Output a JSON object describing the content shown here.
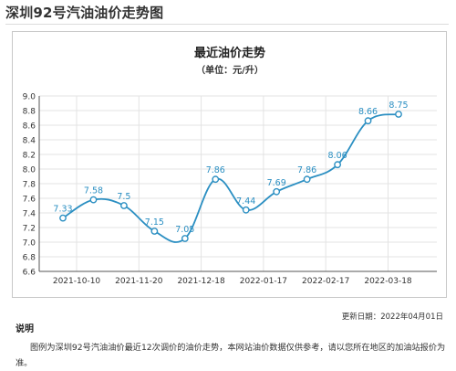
{
  "page": {
    "title": "深圳92号汽油油价走势图",
    "update_label": "更新日期：",
    "update_date": "2022年04月01日",
    "notes_heading": "说明",
    "notes_text": "图例为深圳92号汽油油价最近12次调价的油价走势，本网站油价数据仅供参考，请以您所在地区的加油站报价为准。"
  },
  "colors": {
    "line": "#2b8fc2",
    "grid": "#e3e3e3",
    "axis": "#555555",
    "label": "#2b8fc2"
  },
  "chart_data": {
    "type": "line",
    "title": "最近油价走势",
    "subtitle": "（单位：元/升）",
    "xlabel": "",
    "ylabel": "",
    "ylim": [
      6.6,
      9.0
    ],
    "y_ticks": [
      "6.6",
      "6.8",
      "7.0",
      "7.2",
      "7.4",
      "7.6",
      "7.8",
      "8.0",
      "8.2",
      "8.4",
      "8.6",
      "8.8",
      "9.0"
    ],
    "x_tick_labels": [
      "2021-10-10",
      "2021-11-20",
      "2021-12-18",
      "2022-01-17",
      "2022-02-17",
      "2022-03-18"
    ],
    "grid": true,
    "legend": "none",
    "series": [
      {
        "values": [
          7.33,
          7.58,
          7.5,
          7.15,
          7.05,
          7.86,
          7.44,
          7.69,
          7.86,
          8.06,
          8.66,
          8.75
        ],
        "labels": [
          "7.33",
          "7.58",
          "7.5",
          "7.15",
          "7.05",
          "7.86",
          "7.44",
          "7.69",
          "7.86",
          "8.06",
          "8.66",
          "8.75"
        ]
      }
    ]
  }
}
